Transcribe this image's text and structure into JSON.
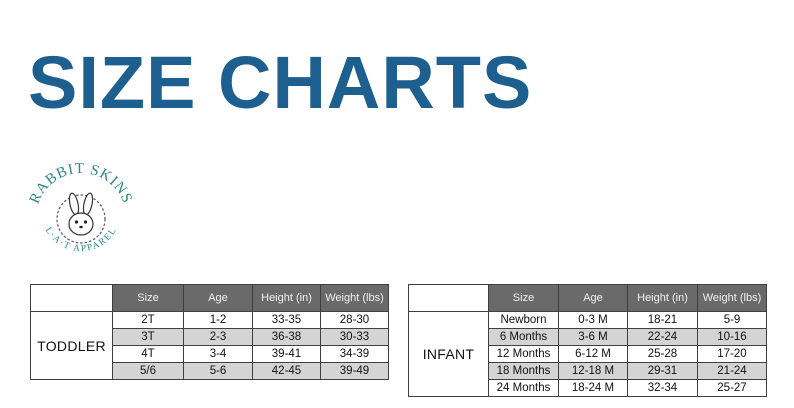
{
  "page": {
    "title": "SIZE CHARTS"
  },
  "logo": {
    "top_text": "RABBIT SKINS",
    "bottom_text": "L·A·T APPAREL"
  },
  "toddler": {
    "label": "TODDLER",
    "headers": [
      "Size",
      "Age",
      "Height (in)",
      "Weight (lbs)"
    ],
    "rows": [
      [
        "2T",
        "1-2",
        "33-35",
        "28-30"
      ],
      [
        "3T",
        "2-3",
        "36-38",
        "30-33"
      ],
      [
        "4T",
        "3-4",
        "39-41",
        "34-39"
      ],
      [
        "5/6",
        "5-6",
        "42-45",
        "39-49"
      ]
    ]
  },
  "infant": {
    "label": "INFANT",
    "headers": [
      "Size",
      "Age",
      "Height (in)",
      "Weight (lbs)"
    ],
    "rows": [
      [
        "Newborn",
        "0-3 M",
        "18-21",
        "5-9"
      ],
      [
        "6 Months",
        "3-6 M",
        "22-24",
        "10-16"
      ],
      [
        "12 Months",
        "6-12 M",
        "25-28",
        "17-20"
      ],
      [
        "18 Months",
        "12-18 M",
        "29-31",
        "21-24"
      ],
      [
        "24 Months",
        "18-24 M",
        "32-34",
        "25-27"
      ]
    ]
  },
  "colors": {
    "title": "#1d5f8f",
    "logo": "#2b8a86",
    "header_bg": "#6a6a6a",
    "stripe": "#d4d4d4"
  }
}
